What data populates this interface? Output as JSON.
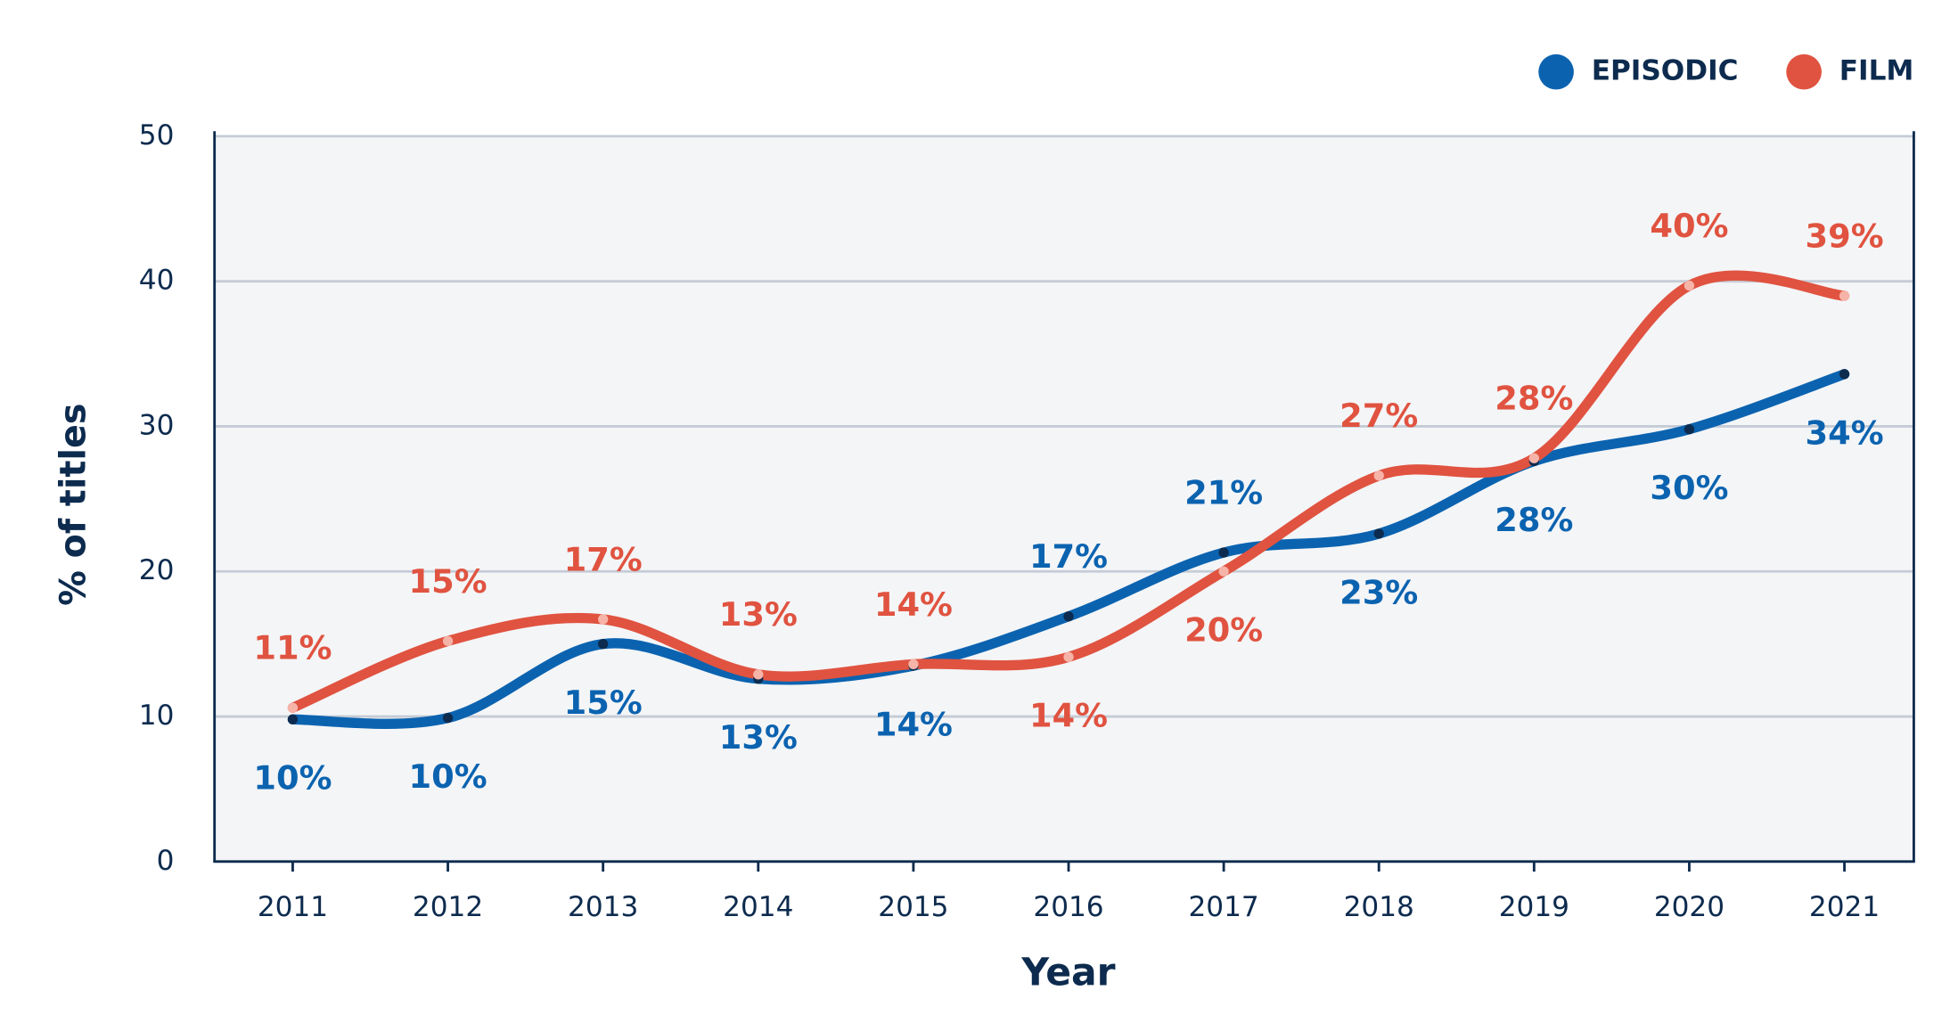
{
  "chart_data": {
    "type": "line",
    "x_label": "Year",
    "y_label": "% of titles",
    "categories": [
      "2011",
      "2012",
      "2013",
      "2014",
      "2015",
      "2016",
      "2017",
      "2018",
      "2019",
      "2020",
      "2021"
    ],
    "series": [
      {
        "name": "EPISODIC",
        "color": "#0b63b0",
        "values": [
          9.8,
          9.9,
          15.0,
          12.6,
          13.5,
          16.9,
          21.3,
          22.6,
          27.6,
          29.8,
          33.6
        ],
        "value_labels": [
          "10%",
          "10%",
          "15%",
          "13%",
          "14%",
          "17%",
          "21%",
          "23%",
          "28%",
          "30%",
          "34%"
        ]
      },
      {
        "name": "FILM",
        "color": "#e05340",
        "values": [
          10.6,
          15.2,
          16.7,
          12.9,
          13.6,
          14.1,
          20.0,
          26.6,
          27.8,
          39.7,
          39.0
        ],
        "value_labels": [
          "11%",
          "15%",
          "17%",
          "13%",
          "14%",
          "14%",
          "20%",
          "27%",
          "28%",
          "40%",
          "39%"
        ]
      }
    ],
    "ylim": [
      0,
      50
    ],
    "yticks": [
      0,
      10,
      20,
      30,
      40,
      50
    ],
    "grid": true,
    "legend": "top-right"
  }
}
